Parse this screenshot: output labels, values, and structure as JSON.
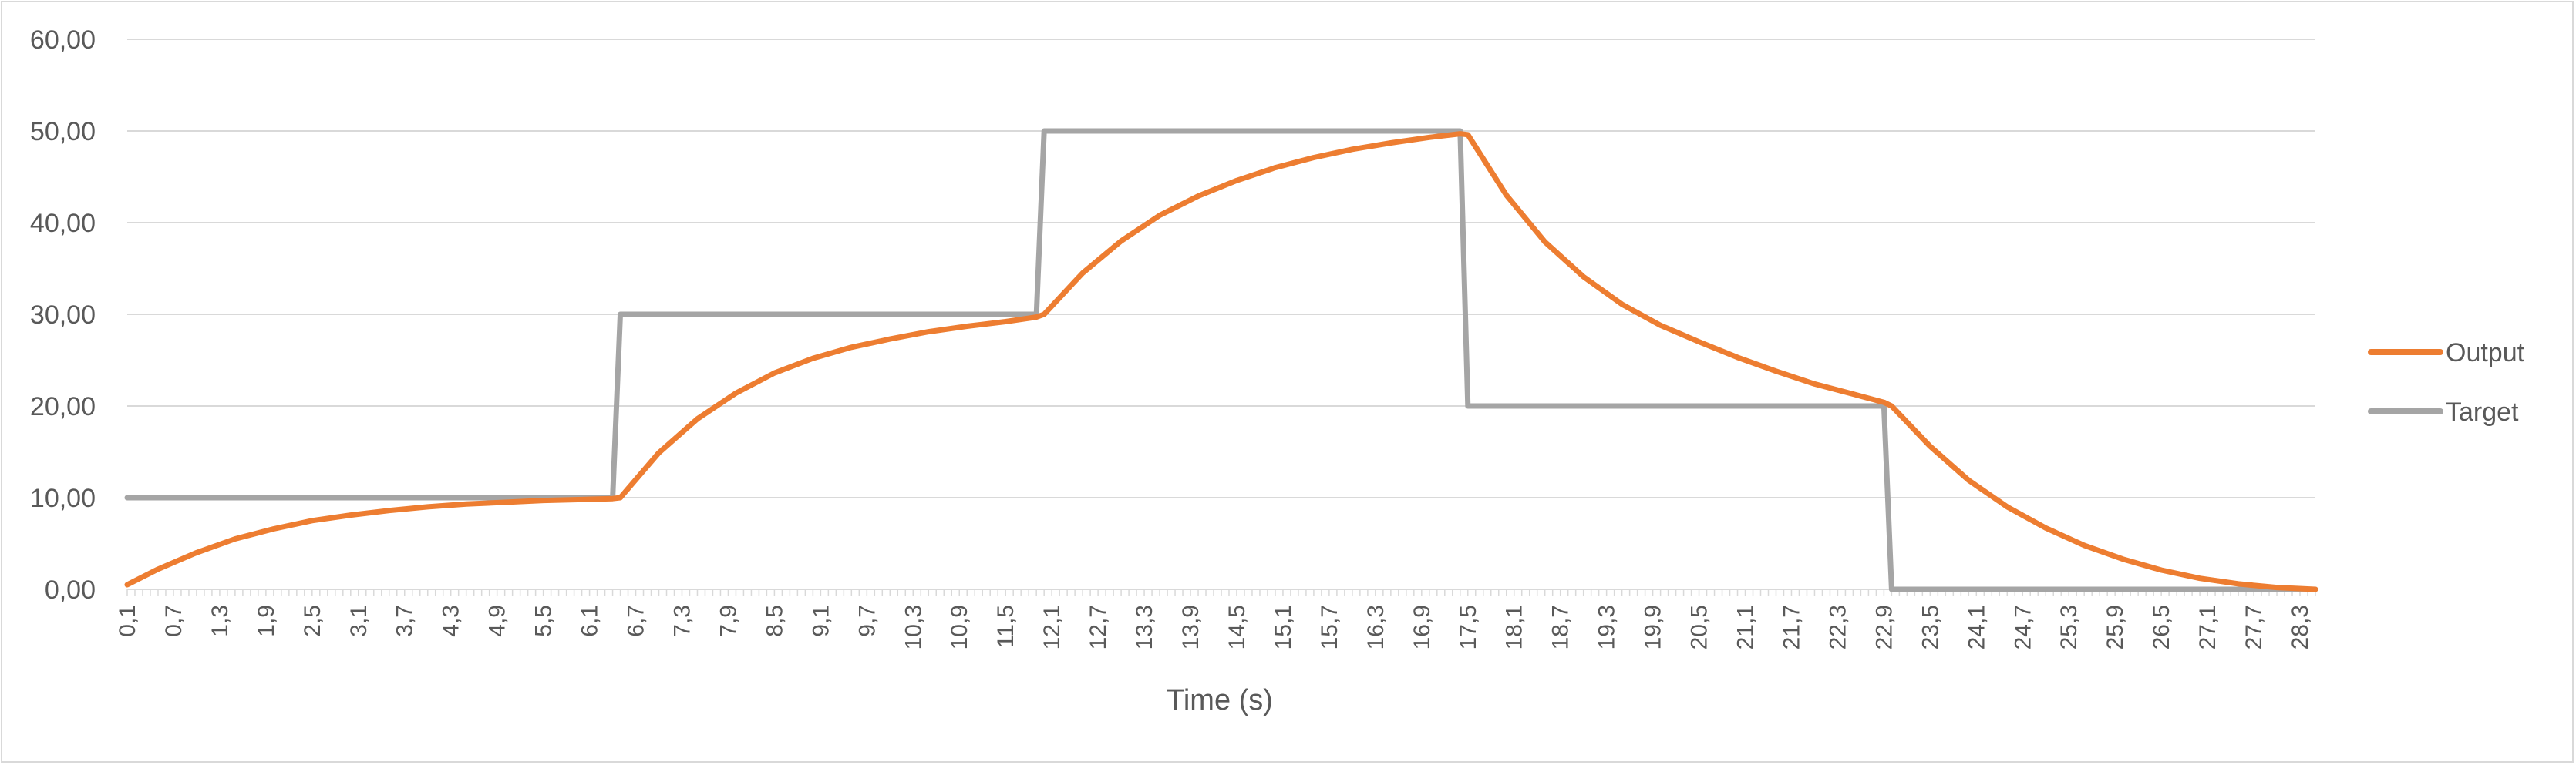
{
  "chart_data": {
    "type": "line",
    "xlabel": "Time (s)",
    "ylabel": "",
    "title": "",
    "ylim": [
      0,
      60
    ],
    "yticks": [
      "0,00",
      "10,00",
      "20,00",
      "30,00",
      "40,00",
      "50,00",
      "60,00"
    ],
    "x_range": [
      0.1,
      28.5
    ],
    "x_step": 0.1,
    "xtick_labels": [
      "0,1",
      "0,7",
      "1,3",
      "1,9",
      "2,5",
      "3,1",
      "3,7",
      "4,3",
      "4,9",
      "5,5",
      "6,1",
      "6,7",
      "7,3",
      "7,9",
      "8,5",
      "9,1",
      "9,7",
      "10,3",
      "10,9",
      "11,5",
      "12,1",
      "12,7",
      "13,3",
      "13,9",
      "14,5",
      "15,1",
      "15,7",
      "16,3",
      "16,9",
      "17,5",
      "18,1",
      "18,7",
      "19,3",
      "19,9",
      "20,5",
      "21,1",
      "21,7",
      "22,3",
      "22,9",
      "23,5",
      "24,1",
      "24,7",
      "25,3",
      "25,9",
      "26,5",
      "27,1",
      "27,7",
      "28,3"
    ],
    "grid": true,
    "legend_position": "right",
    "series": [
      {
        "name": "Output",
        "color": "#ed7d31",
        "x": [
          0.1,
          0.5,
          1.0,
          1.5,
          2.0,
          2.5,
          3.0,
          3.5,
          4.0,
          4.5,
          5.0,
          5.5,
          6.0,
          6.4,
          6.5,
          7.0,
          7.5,
          8.0,
          8.5,
          9.0,
          9.5,
          10.0,
          10.5,
          11.0,
          11.5,
          11.9,
          12.0,
          12.5,
          13.0,
          13.5,
          14.0,
          14.5,
          15.0,
          15.5,
          16.0,
          16.5,
          17.0,
          17.4,
          17.5,
          18.0,
          18.5,
          19.0,
          19.5,
          20.0,
          20.5,
          21.0,
          21.5,
          22.0,
          22.5,
          22.9,
          23.0,
          23.5,
          24.0,
          24.5,
          25.0,
          25.5,
          26.0,
          26.5,
          27.0,
          27.5,
          28.0,
          28.5
        ],
        "y": [
          0.5,
          2.2,
          4.0,
          5.5,
          6.6,
          7.5,
          8.1,
          8.6,
          9.0,
          9.3,
          9.5,
          9.7,
          9.8,
          9.9,
          10.0,
          14.9,
          18.6,
          21.4,
          23.6,
          25.2,
          26.4,
          27.3,
          28.1,
          28.7,
          29.2,
          29.7,
          30.0,
          34.5,
          38.0,
          40.8,
          42.9,
          44.6,
          46.0,
          47.1,
          48.0,
          48.7,
          49.3,
          49.7,
          49.6,
          43.0,
          37.9,
          34.1,
          31.1,
          28.8,
          27.0,
          25.3,
          23.8,
          22.4,
          21.3,
          20.4,
          20.0,
          15.6,
          11.9,
          9.0,
          6.7,
          4.8,
          3.3,
          2.1,
          1.2,
          0.6,
          0.2,
          0.0
        ]
      },
      {
        "name": "Target",
        "color": "#a5a5a5",
        "x": [
          0.1,
          6.4,
          6.5,
          11.9,
          12.0,
          17.4,
          17.5,
          22.9,
          23.0,
          28.5
        ],
        "y": [
          10,
          10,
          30,
          30,
          50,
          50,
          20,
          20,
          0,
          0
        ]
      }
    ]
  }
}
